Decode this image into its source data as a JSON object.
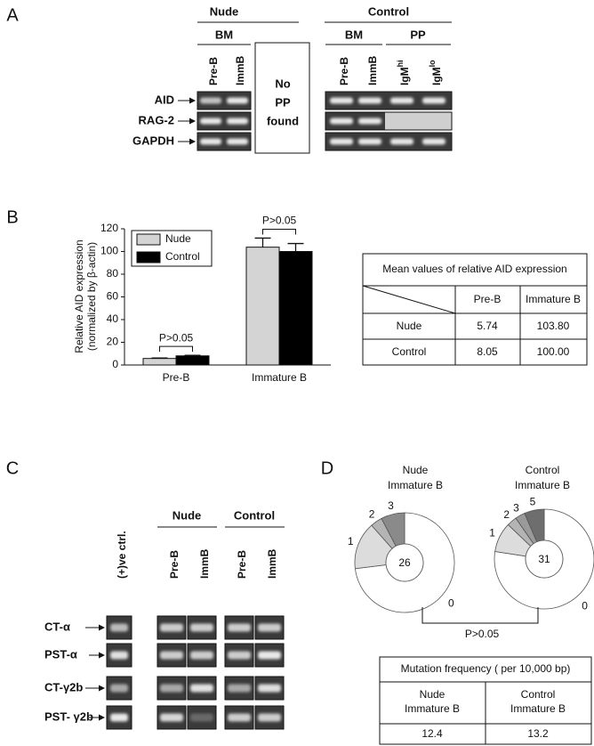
{
  "panel_labels": [
    "A",
    "B",
    "C",
    "D"
  ],
  "gel_a": {
    "nude": "Nude",
    "control": "Control",
    "subgroups": [
      "BM",
      "BM",
      "PP"
    ],
    "lanes": [
      "Pre-B",
      "ImmB",
      "Pre-B",
      "ImmB",
      {
        "base": "IgM",
        "sup": "hi"
      },
      {
        "base": "IgM",
        "sup": "lo"
      }
    ],
    "no_pp": [
      "No",
      "PP",
      "found"
    ],
    "rows": [
      "AID",
      "RAG-2",
      "GAPDH"
    ]
  },
  "chart_data": [
    {
      "type": "bar",
      "ylabel": [
        "Relative AID expression",
        "(normalized by β-actin)"
      ],
      "categories": [
        "Pre-B",
        "Immature B"
      ],
      "series": [
        {
          "name": "Nude",
          "color": "#d4d4d4",
          "values": [
            5.74,
            103.8
          ],
          "errors": [
            0.4,
            8
          ]
        },
        {
          "name": "Control",
          "color": "#000000",
          "values": [
            8.05,
            100
          ],
          "errors": [
            0.5,
            7
          ]
        }
      ],
      "ylim": [
        0,
        120
      ],
      "yticks": [
        0,
        20,
        40,
        60,
        80,
        100,
        120
      ],
      "annotations": [
        "P>0.05",
        "P>0.05"
      ]
    },
    {
      "type": "pie",
      "title": [
        "Nude",
        "Immature B"
      ],
      "total": 26,
      "categories": [
        "0",
        "1",
        "2",
        "3"
      ],
      "values": [
        19,
        4,
        1,
        2
      ],
      "colors": [
        "#ffffff",
        "#dcdcdc",
        "#b4b4b4",
        "#8a8a8a"
      ]
    },
    {
      "type": "pie",
      "title": [
        "Control",
        "Immature B"
      ],
      "total": 31,
      "categories": [
        "0",
        "1",
        "2",
        "3",
        "5"
      ],
      "values": [
        24,
        3,
        1,
        1,
        2
      ],
      "colors": [
        "#ffffff",
        "#dcdcdc",
        "#b4b4b4",
        "#9a9a9a",
        "#6e6e6e"
      ]
    }
  ],
  "table_b": {
    "title": "Mean values of relative AID expression",
    "columns": [
      "Pre-B",
      "Immature B"
    ],
    "rows": [
      [
        "Nude",
        "5.74",
        "103.80"
      ],
      [
        "Control",
        "8.05",
        "100.00"
      ]
    ]
  },
  "gel_c": {
    "positive_control": "(+)ve ctrl.",
    "nude": "Nude",
    "control": "Control",
    "lanes": [
      "Pre-B",
      "ImmB",
      "Pre-B",
      "ImmB"
    ],
    "rows": [
      "CT-α",
      "PST-α",
      "CT-γ2b",
      "PST- γ2b"
    ]
  },
  "comparison_d": "P>0.05",
  "table_d": {
    "title": "Mutation frequency ( per 10,000 bp)",
    "columns": [
      [
        "Nude",
        "Immature B"
      ],
      [
        "Control",
        "Immature B"
      ]
    ],
    "values": [
      "12.4",
      "13.2"
    ]
  }
}
